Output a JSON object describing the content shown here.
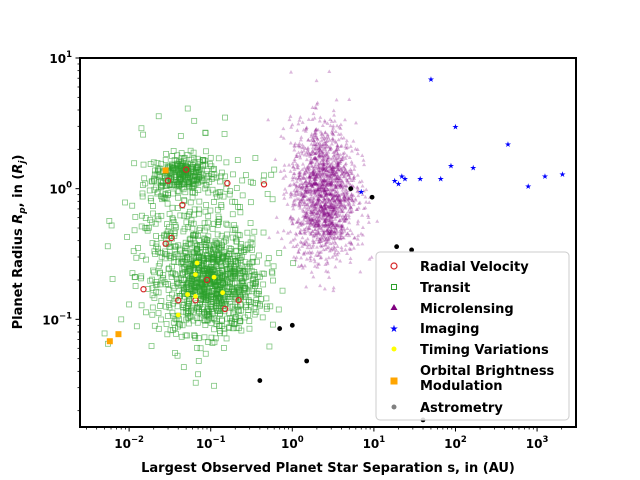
{
  "chart_data": {
    "type": "scatter",
    "xlabel": "Largest Observed Planet Star Separation s, in (AU)",
    "ylabel": "Planet Radius $R_p$, in $(R_j)$",
    "ylabel_parts": [
      "Planet Radius ",
      "R",
      "p",
      ", in (",
      "R",
      "j",
      ")"
    ],
    "x_scale": "log",
    "y_scale": "log",
    "xlim": [
      0.0025,
      3000
    ],
    "ylim": [
      0.015,
      10
    ],
    "x_ticks": [
      {
        "value": 0.01,
        "base": "10",
        "exp": "−2"
      },
      {
        "value": 0.1,
        "base": "10",
        "exp": "−1"
      },
      {
        "value": 1,
        "base": "10",
        "exp": "0"
      },
      {
        "value": 10,
        "base": "10",
        "exp": "1"
      },
      {
        "value": 100,
        "base": "10",
        "exp": "2"
      },
      {
        "value": 1000,
        "base": "10",
        "exp": "3"
      }
    ],
    "y_ticks": [
      {
        "value": 0.1,
        "base": "10",
        "exp": "−1"
      },
      {
        "value": 1,
        "base": "10",
        "exp": "0"
      },
      {
        "value": 10,
        "base": "10",
        "exp": "1"
      }
    ],
    "grid": false,
    "legend_position": "lower-right",
    "series": [
      {
        "name": "Radial Velocity",
        "marker": "open-circle",
        "color": "#d62728",
        "points": [
          [
            0.015,
            0.17
          ],
          [
            0.028,
            0.38
          ],
          [
            0.033,
            0.42
          ],
          [
            0.03,
            1.15
          ],
          [
            0.045,
            0.75
          ],
          [
            0.05,
            1.4
          ],
          [
            0.04,
            0.14
          ],
          [
            0.065,
            0.14
          ],
          [
            0.09,
            0.2
          ],
          [
            0.15,
            0.12
          ],
          [
            0.16,
            1.1
          ],
          [
            0.22,
            0.14
          ],
          [
            0.45,
            1.08
          ]
        ]
      },
      {
        "name": "Transit",
        "marker": "open-square",
        "color": "#2ca02c",
        "clusters": [
          {
            "center": [
              0.045,
              1.3
            ],
            "count": 240,
            "spread_dex": [
              0.17,
              0.07
            ]
          },
          {
            "center": [
              0.1,
              0.19
            ],
            "count": 950,
            "spread_dex": [
              0.32,
              0.19
            ]
          },
          {
            "center": [
              0.03,
              0.55
            ],
            "count": 140,
            "spread_dex": [
              0.28,
              0.3
            ]
          },
          {
            "center": [
              0.12,
              0.9
            ],
            "count": 90,
            "spread_dex": [
              0.3,
              0.18
            ]
          }
        ],
        "points": [
          [
            0.005,
            0.078
          ],
          [
            0.0055,
            0.065
          ],
          [
            0.008,
            0.1
          ],
          [
            0.01,
            0.13
          ],
          [
            0.012,
            0.18
          ],
          [
            0.15,
            3.5
          ],
          [
            0.6,
            1.4
          ],
          [
            0.35,
            0.18
          ],
          [
            0.4,
            0.13
          ],
          [
            0.07,
            0.038
          ],
          [
            0.11,
            0.031
          ]
        ]
      },
      {
        "name": "Microlensing",
        "marker": "triangle",
        "color": "#800080",
        "clusters": [
          {
            "center": [
              2.4,
              1.0
            ],
            "count": 1500,
            "spread_dex": [
              0.2,
              0.25
            ]
          },
          {
            "center": [
              2.5,
              0.5
            ],
            "count": 200,
            "spread_dex": [
              0.18,
              0.13
            ]
          }
        ],
        "points": [
          [
            3.2,
            1.25
          ],
          [
            2.8,
            0.8
          ],
          [
            1.6,
            0.5
          ]
        ]
      },
      {
        "name": "Imaging",
        "marker": "star",
        "color": "#0000ff",
        "points": [
          [
            50,
            6.9
          ],
          [
            100,
            3.0
          ],
          [
            440,
            2.2
          ],
          [
            18,
            1.15
          ],
          [
            22,
            1.25
          ],
          [
            20,
            1.1
          ],
          [
            24,
            1.2
          ],
          [
            37,
            1.2
          ],
          [
            66,
            1.2
          ],
          [
            88,
            1.5
          ],
          [
            165,
            1.45
          ],
          [
            780,
            1.05
          ],
          [
            1250,
            1.25
          ],
          [
            2050,
            1.3
          ],
          [
            7,
            0.95
          ]
        ]
      },
      {
        "name": "Timing Variations",
        "marker": "point",
        "color": "#ffff00",
        "points": [
          [
            0.04,
            0.108
          ],
          [
            0.052,
            0.155
          ],
          [
            0.068,
            0.27
          ],
          [
            0.065,
            0.22
          ],
          [
            0.11,
            0.21
          ],
          [
            0.065,
            0.15
          ],
          [
            0.14,
            0.16
          ]
        ]
      },
      {
        "name": "Orbital Brightness\nModulation",
        "marker": "filled-square",
        "color": "#ffa500",
        "points": [
          [
            0.0058,
            0.068
          ],
          [
            0.0074,
            0.077
          ],
          [
            0.028,
            1.38
          ]
        ]
      },
      {
        "name": "Astrometry",
        "marker": "point",
        "color": "#808080",
        "points": []
      },
      {
        "name": "",
        "marker": "point",
        "color": "#000000",
        "points": [
          [
            0.4,
            0.034
          ],
          [
            0.7,
            0.085
          ],
          [
            1.0,
            0.09
          ],
          [
            1.5,
            0.048
          ],
          [
            5.2,
            1.0
          ],
          [
            9.5,
            0.86
          ],
          [
            19,
            0.36
          ],
          [
            29,
            0.34
          ],
          [
            40,
            0.017
          ]
        ]
      }
    ]
  }
}
